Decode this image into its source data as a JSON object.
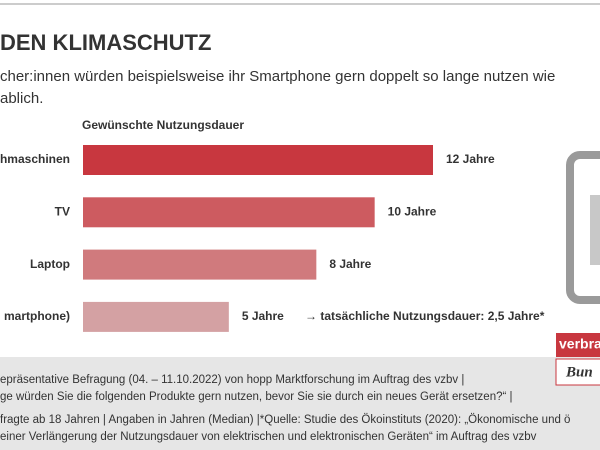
{
  "chart_data": {
    "type": "bar",
    "orientation": "horizontal",
    "title": "DEN KLIMASCHUTZ",
    "subtitle": [
      "cher:innen würden beispielsweise ihr Smartphone gern doppelt so lange nutzen wie",
      "ablich."
    ],
    "chart_title": "Gewünschte Nutzungsdauer",
    "categories": [
      "hmaschinen",
      "TV",
      "Laptop",
      "martphone)"
    ],
    "values": [
      12,
      10,
      8,
      5
    ],
    "value_labels": [
      "12  Jahre",
      "10 Jahre",
      "8 Jahre",
      "5 Jahre"
    ],
    "colors": [
      "#c8373f",
      "#cd5b60",
      "#d07a7d",
      "#d4a1a3"
    ],
    "annotation": "→ tatsächliche Nutzungsdauer: 2,5 Jahre*",
    "footer": [
      "epräsentative Befragung (04. – 11.10.2022) von hopp Marktforschung im Auftrag des vzbv |",
      "ge würden Sie die folgenden Produkte gern nutzen, bevor Sie sie durch ein neues Gerät ersetzen?“ |",
      "fragte ab 18 Jahren | Angaben in Jahren (Median) |*Quelle: Studie des Ökoinstituts (2020): „Ökonomische und ö",
      "einer Verlängerung der Nutzungsdauer von elektrischen und elektronischen Geräten“ im Auftrag des vzbv"
    ],
    "logo": [
      "verbra",
      "Bun"
    ]
  }
}
